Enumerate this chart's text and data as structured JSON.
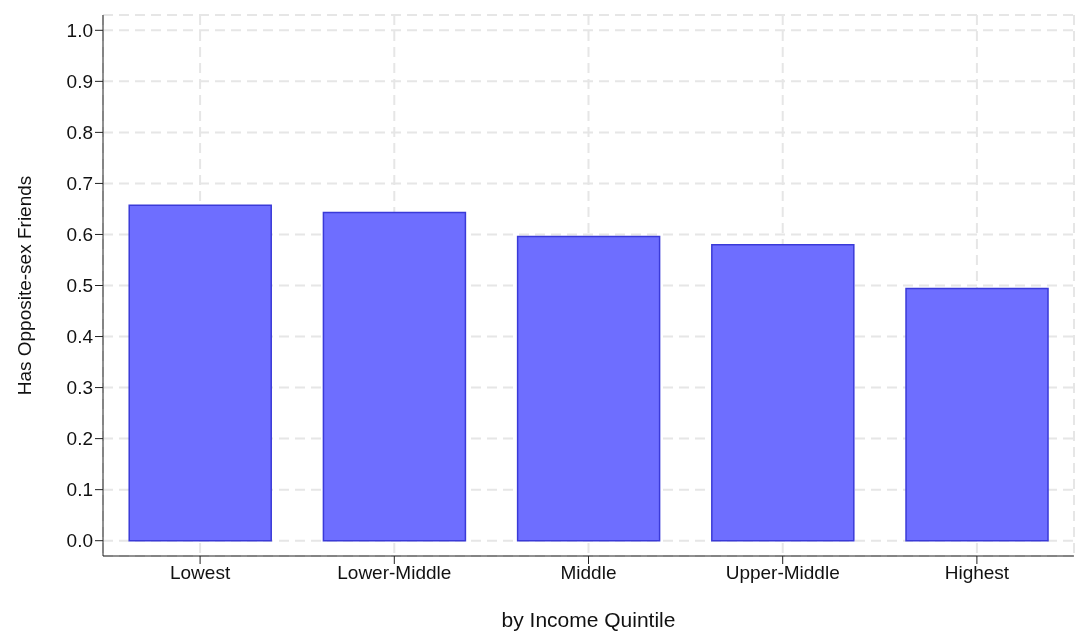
{
  "chart_data": {
    "type": "bar",
    "xlabel": "by Income Quintile",
    "ylabel": "Has Opposite-sex Friends",
    "categories": [
      "Lowest",
      "Lower-Middle",
      "Middle",
      "Upper-Middle",
      "Highest"
    ],
    "values": [
      0.657,
      0.643,
      0.596,
      0.58,
      0.494
    ],
    "color": "#6e6eff",
    "ylim": [
      -0.03,
      1.03
    ],
    "yticks": [
      {
        "value": 0,
        "label": "0.0"
      },
      0.1,
      0.2,
      0.3,
      0.4,
      0.5,
      0.6,
      0.7,
      0.8,
      0.9,
      {
        "value": 1,
        "label": "1.0"
      }
    ],
    "grid": true,
    "legend": false
  }
}
